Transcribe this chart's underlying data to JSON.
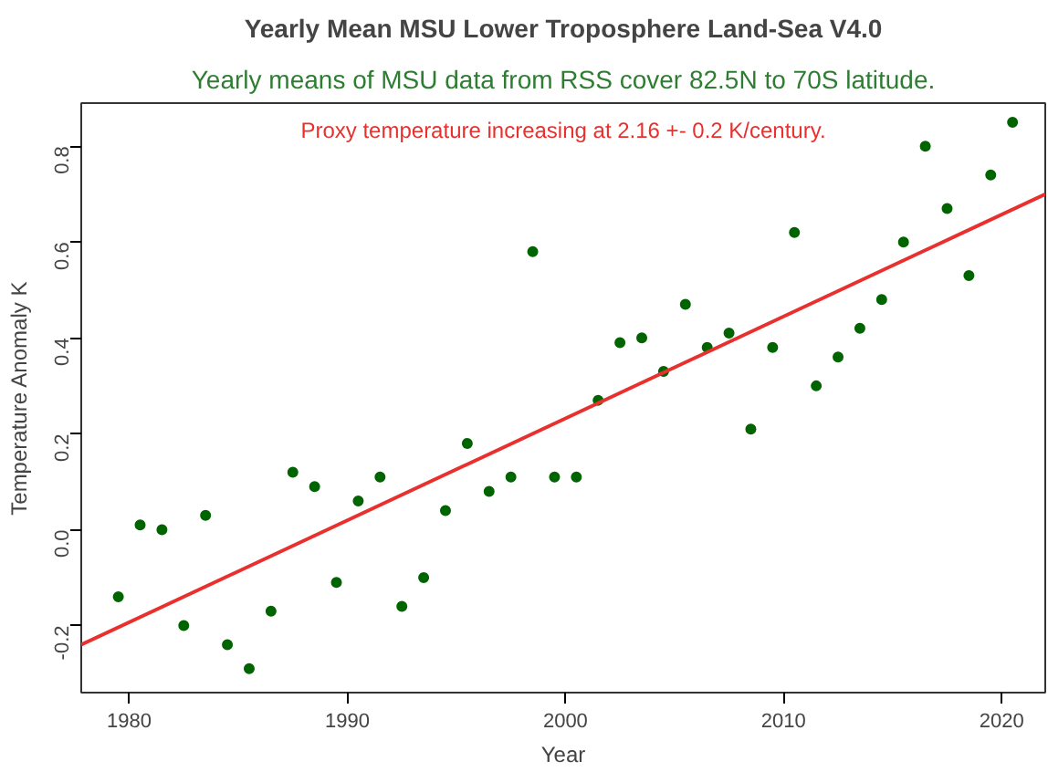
{
  "chart_data": {
    "type": "scatter",
    "title": "Yearly Mean MSU Lower Troposphere Land-Sea V4.0",
    "subtitle": "Yearly means of MSU data from RSS cover 82.5N to 70S latitude.",
    "xlabel": "Year",
    "ylabel": "Temperature Anomaly K",
    "annotations": [
      "Proxy temperature increasing at 2.16 +- 0.2 K/century."
    ],
    "x": [
      1979.5,
      1980.5,
      1981.5,
      1982.5,
      1983.5,
      1984.5,
      1985.5,
      1986.5,
      1987.5,
      1988.5,
      1989.5,
      1990.5,
      1991.5,
      1992.5,
      1993.5,
      1994.5,
      1995.5,
      1996.5,
      1997.5,
      1998.5,
      1999.5,
      2000.5,
      2001.5,
      2002.5,
      2003.5,
      2004.5,
      2005.5,
      2006.5,
      2007.5,
      2008.5,
      2009.5,
      2010.5,
      2011.5,
      2012.5,
      2013.5,
      2014.5,
      2015.5,
      2016.5,
      2017.5,
      2018.5,
      2019.5,
      2020.5
    ],
    "series": [
      {
        "color": "#006400",
        "marker": "circle",
        "values": [
          -0.14,
          0.01,
          0.0,
          -0.2,
          0.03,
          -0.24,
          -0.29,
          -0.17,
          0.12,
          0.09,
          -0.11,
          0.06,
          0.11,
          -0.16,
          -0.1,
          0.04,
          0.18,
          0.08,
          0.11,
          0.58,
          0.11,
          0.11,
          0.27,
          0.39,
          0.4,
          0.33,
          0.47,
          0.38,
          0.41,
          0.21,
          0.38,
          0.62,
          0.3,
          0.36,
          0.42,
          0.48,
          0.6,
          0.8,
          0.67,
          0.53,
          0.74,
          0.85
        ]
      },
      {
        "type": "line",
        "color": "#e8312f",
        "x": [
          1977.8,
          2022.0
        ],
        "values": [
          -0.24,
          0.7
        ]
      }
    ],
    "xlim": [
      1977.8,
      2022.0
    ],
    "ylim": [
      -0.34,
      0.89
    ],
    "xticks": [
      1980,
      1990,
      2000,
      2010,
      2020
    ],
    "yticks": [
      -0.2,
      {
        "value": 0,
        "label": "0.0"
      },
      0.2,
      0.4,
      0.6,
      0.8
    ],
    "grid": false,
    "line_style": "solid"
  }
}
